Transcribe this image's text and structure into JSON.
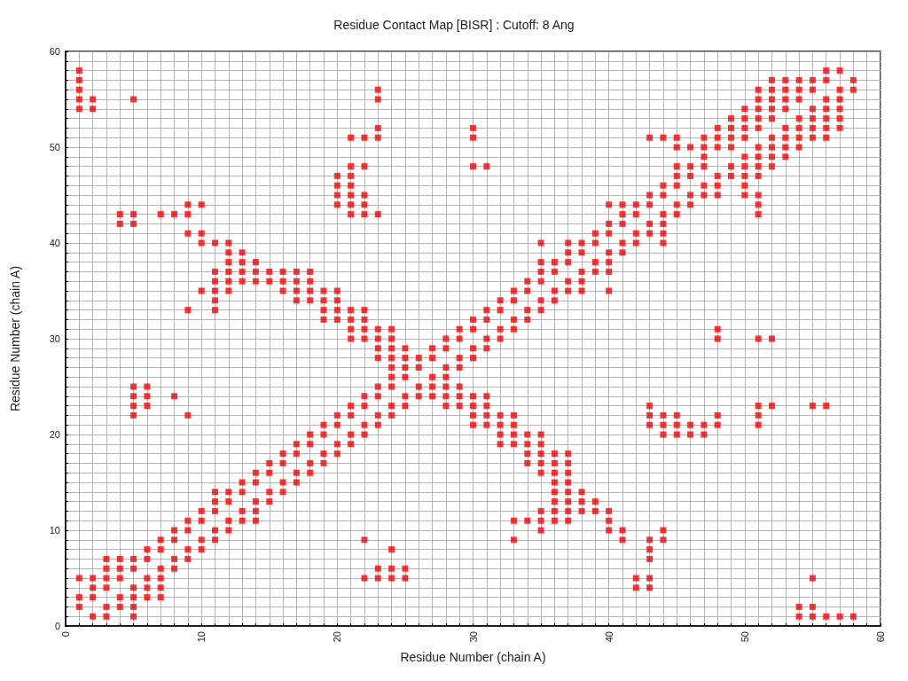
{
  "chart_data": {
    "type": "scatter",
    "title": "Residue Contact Map [BISR] : Cutoff: 8 Ang",
    "xlabel": "Residue Number (chain A)",
    "ylabel": "Residue Number (chain A)",
    "xlim": [
      0,
      60
    ],
    "ylim": [
      0,
      60
    ],
    "xticks": [
      0,
      {
        "value": 1,
        "label": null
      },
      {
        "value": 2,
        "label": null
      },
      {
        "value": 3,
        "label": null
      },
      {
        "value": 4,
        "label": null
      },
      {
        "value": 5,
        "label": null
      },
      {
        "value": 6,
        "label": null
      },
      {
        "value": 7,
        "label": null
      },
      {
        "value": 8,
        "label": null
      },
      {
        "value": 9,
        "label": null
      },
      10,
      {
        "value": 11,
        "label": null
      },
      {
        "value": 12,
        "label": null
      },
      {
        "value": 13,
        "label": null
      },
      {
        "value": 14,
        "label": null
      },
      {
        "value": 15,
        "label": null
      },
      {
        "value": 16,
        "label": null
      },
      {
        "value": 17,
        "label": null
      },
      {
        "value": 18,
        "label": null
      },
      {
        "value": 19,
        "label": null
      },
      20,
      {
        "value": 21,
        "label": null
      },
      {
        "value": 22,
        "label": null
      },
      {
        "value": 23,
        "label": null
      },
      {
        "value": 24,
        "label": null
      },
      {
        "value": 25,
        "label": null
      },
      {
        "value": 26,
        "label": null
      },
      {
        "value": 27,
        "label": null
      },
      {
        "value": 28,
        "label": null
      },
      {
        "value": 29,
        "label": null
      },
      30,
      {
        "value": 31,
        "label": null
      },
      {
        "value": 32,
        "label": null
      },
      {
        "value": 33,
        "label": null
      },
      {
        "value": 34,
        "label": null
      },
      {
        "value": 35,
        "label": null
      },
      {
        "value": 36,
        "label": null
      },
      {
        "value": 37,
        "label": null
      },
      {
        "value": 38,
        "label": null
      },
      {
        "value": 39,
        "label": null
      },
      40,
      {
        "value": 41,
        "label": null
      },
      {
        "value": 42,
        "label": null
      },
      {
        "value": 43,
        "label": null
      },
      {
        "value": 44,
        "label": null
      },
      {
        "value": 45,
        "label": null
      },
      {
        "value": 46,
        "label": null
      },
      {
        "value": 47,
        "label": null
      },
      {
        "value": 48,
        "label": null
      },
      {
        "value": 49,
        "label": null
      },
      50,
      {
        "value": 51,
        "label": null
      },
      {
        "value": 52,
        "label": null
      },
      {
        "value": 53,
        "label": null
      },
      {
        "value": 54,
        "label": null
      },
      {
        "value": 55,
        "label": null
      },
      {
        "value": 56,
        "label": null
      },
      {
        "value": 57,
        "label": null
      },
      {
        "value": 58,
        "label": null
      },
      {
        "value": 59,
        "label": null
      },
      60
    ],
    "yticks": [
      0,
      {
        "value": 1,
        "label": null
      },
      {
        "value": 2,
        "label": null
      },
      {
        "value": 3,
        "label": null
      },
      {
        "value": 4,
        "label": null
      },
      {
        "value": 5,
        "label": null
      },
      {
        "value": 6,
        "label": null
      },
      {
        "value": 7,
        "label": null
      },
      {
        "value": 8,
        "label": null
      },
      {
        "value": 9,
        "label": null
      },
      10,
      {
        "value": 11,
        "label": null
      },
      {
        "value": 12,
        "label": null
      },
      {
        "value": 13,
        "label": null
      },
      {
        "value": 14,
        "label": null
      },
      {
        "value": 15,
        "label": null
      },
      {
        "value": 16,
        "label": null
      },
      {
        "value": 17,
        "label": null
      },
      {
        "value": 18,
        "label": null
      },
      {
        "value": 19,
        "label": null
      },
      20,
      {
        "value": 21,
        "label": null
      },
      {
        "value": 22,
        "label": null
      },
      {
        "value": 23,
        "label": null
      },
      {
        "value": 24,
        "label": null
      },
      {
        "value": 25,
        "label": null
      },
      {
        "value": 26,
        "label": null
      },
      {
        "value": 27,
        "label": null
      },
      {
        "value": 28,
        "label": null
      },
      {
        "value": 29,
        "label": null
      },
      30,
      {
        "value": 31,
        "label": null
      },
      {
        "value": 32,
        "label": null
      },
      {
        "value": 33,
        "label": null
      },
      {
        "value": 34,
        "label": null
      },
      {
        "value": 35,
        "label": null
      },
      {
        "value": 36,
        "label": null
      },
      {
        "value": 37,
        "label": null
      },
      {
        "value": 38,
        "label": null
      },
      {
        "value": 39,
        "label": null
      },
      40,
      {
        "value": 41,
        "label": null
      },
      {
        "value": 42,
        "label": null
      },
      {
        "value": 43,
        "label": null
      },
      {
        "value": 44,
        "label": null
      },
      {
        "value": 45,
        "label": null
      },
      {
        "value": 46,
        "label": null
      },
      {
        "value": 47,
        "label": null
      },
      {
        "value": 48,
        "label": null
      },
      {
        "value": 49,
        "label": null
      },
      50,
      {
        "value": 51,
        "label": null
      },
      {
        "value": 52,
        "label": null
      },
      {
        "value": 53,
        "label": null
      },
      {
        "value": 54,
        "label": null
      },
      {
        "value": 55,
        "label": null
      },
      {
        "value": 56,
        "label": null
      },
      {
        "value": 57,
        "label": null
      },
      {
        "value": 58,
        "label": null
      },
      {
        "value": 59,
        "label": null
      },
      60
    ],
    "grid": true,
    "marker": "square",
    "series": [
      {
        "color": "#ff0000",
        "x": [
          1,
          1,
          1,
          1,
          1,
          1,
          1,
          1,
          2,
          2,
          2,
          2,
          2,
          2,
          3,
          3,
          3,
          3,
          3,
          3,
          4,
          4,
          4,
          4,
          4,
          4,
          4,
          5,
          5,
          5,
          5,
          5,
          5,
          5,
          5,
          5,
          5,
          5,
          5,
          5,
          6,
          6,
          6,
          6,
          6,
          6,
          6,
          6,
          7,
          7,
          7,
          7,
          7,
          7,
          7,
          8,
          8,
          8,
          8,
          8,
          8,
          9,
          9,
          9,
          9,
          9,
          9,
          9,
          9,
          9,
          10,
          10,
          10,
          10,
          10,
          10,
          10,
          10,
          11,
          11,
          11,
          11,
          11,
          11,
          11,
          11,
          11,
          11,
          11,
          12,
          12,
          12,
          12,
          12,
          12,
          12,
          12,
          12,
          12,
          13,
          13,
          13,
          13,
          13,
          13,
          13,
          13,
          14,
          14,
          14,
          14,
          14,
          14,
          14,
          14,
          15,
          15,
          15,
          15,
          15,
          15,
          16,
          16,
          16,
          16,
          16,
          16,
          16,
          17,
          17,
          17,
          17,
          17,
          17,
          17,
          17,
          18,
          18,
          18,
          18,
          18,
          18,
          18,
          18,
          19,
          19,
          19,
          19,
          19,
          19,
          19,
          19,
          20,
          20,
          20,
          20,
          20,
          20,
          20,
          20,
          20,
          20,
          20,
          20,
          21,
          21,
          21,
          21,
          21,
          21,
          21,
          21,
          21,
          21,
          21,
          21,
          21,
          21,
          21,
          22,
          22,
          22,
          22,
          22,
          22,
          22,
          22,
          22,
          22,
          22,
          22,
          22,
          22,
          22,
          23,
          23,
          23,
          23,
          23,
          23,
          23,
          23,
          23,
          23,
          23,
          23,
          23,
          23,
          23,
          24,
          24,
          24,
          24,
          24,
          24,
          24,
          24,
          24,
          24,
          24,
          24,
          25,
          25,
          25,
          25,
          25,
          25,
          25,
          25,
          26,
          26,
          26,
          26,
          27,
          27,
          27,
          27,
          27,
          28,
          28,
          28,
          28,
          28,
          28,
          28,
          29,
          29,
          29,
          29,
          29,
          29,
          29,
          30,
          30,
          30,
          30,
          30,
          30,
          30,
          30,
          30,
          30,
          30,
          31,
          31,
          31,
          31,
          31,
          31,
          31,
          31,
          31,
          32,
          32,
          32,
          32,
          32,
          32,
          32,
          32,
          33,
          33,
          33,
          33,
          33,
          33,
          33,
          33,
          33,
          33,
          34,
          34,
          34,
          34,
          34,
          34,
          34,
          34,
          34,
          35,
          35,
          35,
          35,
          35,
          35,
          35,
          35,
          35,
          35,
          35,
          35,
          35,
          35,
          36,
          36,
          36,
          36,
          36,
          36,
          36,
          36,
          36,
          36,
          36,
          36,
          37,
          37,
          37,
          37,
          37,
          37,
          37,
          37,
          37,
          37,
          37,
          37,
          37,
          38,
          38,
          38,
          38,
          38,
          38,
          38,
          38,
          39,
          39,
          39,
          39,
          39,
          39,
          40,
          40,
          40,
          40,
          40,
          40,
          40,
          40,
          40,
          40,
          41,
          41,
          41,
          41,
          41,
          41,
          41,
          42,
          42,
          42,
          42,
          42,
          42,
          43,
          43,
          43,
          43,
          43,
          43,
          43,
          43,
          43,
          43,
          43,
          43,
          43,
          44,
          44,
          44,
          44,
          44,
          44,
          44,
          44,
          44,
          44,
          44,
          44,
          45,
          45,
          45,
          45,
          45,
          45,
          45,
          45,
          45,
          45,
          46,
          46,
          46,
          46,
          46,
          46,
          46,
          47,
          47,
          47,
          47,
          47,
          47,
          47,
          47,
          48,
          48,
          48,
          48,
          48,
          48,
          48,
          48,
          48,
          48,
          49,
          49,
          49,
          49,
          49,
          49,
          50,
          50,
          50,
          50,
          50,
          50,
          50,
          50,
          50,
          51,
          51,
          51,
          51,
          51,
          51,
          51,
          51,
          51,
          51,
          51,
          51,
          51,
          51,
          51,
          51,
          52,
          52,
          52,
          52,
          52,
          52,
          52,
          52,
          52,
          52,
          52,
          53,
          53,
          53,
          53,
          53,
          53,
          53,
          53,
          54,
          54,
          54,
          54,
          54,
          54,
          54,
          54,
          54,
          55,
          55,
          55,
          55,
          55,
          55,
          55,
          55,
          55,
          55,
          56,
          56,
          56,
          56,
          56,
          56,
          56,
          56,
          56,
          57,
          57,
          57,
          57,
          57,
          57,
          57,
          58,
          58,
          58
        ],
        "values": [
          2,
          3,
          5,
          54,
          55,
          56,
          57,
          58,
          1,
          3,
          4,
          5,
          54,
          55,
          1,
          2,
          4,
          5,
          6,
          7,
          2,
          3,
          5,
          6,
          7,
          42,
          43,
          1,
          2,
          3,
          4,
          6,
          7,
          22,
          23,
          24,
          25,
          42,
          43,
          55,
          3,
          4,
          5,
          7,
          8,
          23,
          24,
          25,
          3,
          4,
          5,
          6,
          8,
          9,
          43,
          6,
          7,
          9,
          10,
          24,
          43,
          7,
          8,
          10,
          11,
          22,
          33,
          41,
          43,
          44,
          8,
          9,
          11,
          12,
          35,
          40,
          41,
          44,
          9,
          10,
          12,
          13,
          14,
          33,
          34,
          35,
          36,
          37,
          40,
          10,
          11,
          13,
          14,
          35,
          36,
          37,
          38,
          39,
          40,
          11,
          12,
          14,
          15,
          36,
          37,
          38,
          39,
          11,
          12,
          13,
          15,
          16,
          36,
          37,
          38,
          13,
          14,
          16,
          17,
          36,
          37,
          14,
          15,
          17,
          18,
          35,
          36,
          37,
          15,
          16,
          18,
          19,
          34,
          35,
          36,
          37,
          16,
          17,
          19,
          20,
          34,
          35,
          36,
          37,
          17,
          18,
          20,
          21,
          32,
          33,
          34,
          35,
          18,
          19,
          21,
          22,
          32,
          33,
          34,
          35,
          44,
          45,
          46,
          47,
          19,
          20,
          22,
          23,
          30,
          31,
          32,
          33,
          43,
          44,
          45,
          46,
          47,
          48,
          51,
          5,
          9,
          20,
          21,
          23,
          24,
          30,
          31,
          32,
          33,
          43,
          44,
          45,
          48,
          51,
          5,
          6,
          21,
          22,
          24,
          25,
          28,
          29,
          30,
          31,
          43,
          51,
          52,
          55,
          56,
          5,
          6,
          8,
          22,
          23,
          25,
          26,
          27,
          28,
          29,
          30,
          31,
          5,
          6,
          23,
          24,
          26,
          27,
          28,
          29,
          24,
          25,
          27,
          28,
          24,
          25,
          26,
          28,
          29,
          23,
          24,
          25,
          26,
          27,
          29,
          30,
          23,
          24,
          25,
          27,
          28,
          30,
          31,
          21,
          22,
          23,
          24,
          28,
          29,
          31,
          32,
          48,
          51,
          52,
          21,
          22,
          23,
          24,
          29,
          30,
          32,
          33,
          48,
          19,
          20,
          21,
          22,
          30,
          31,
          33,
          34,
          9,
          11,
          19,
          20,
          21,
          22,
          31,
          32,
          34,
          35,
          11,
          17,
          18,
          19,
          20,
          32,
          33,
          35,
          36,
          10,
          11,
          12,
          16,
          17,
          18,
          19,
          20,
          33,
          34,
          36,
          37,
          38,
          40,
          11,
          12,
          13,
          14,
          15,
          16,
          17,
          18,
          34,
          35,
          37,
          38,
          11,
          12,
          13,
          14,
          15,
          16,
          17,
          18,
          35,
          36,
          38,
          39,
          40,
          12,
          13,
          14,
          35,
          36,
          37,
          39,
          40,
          12,
          13,
          37,
          38,
          40,
          41,
          10,
          11,
          12,
          35,
          37,
          38,
          39,
          41,
          42,
          44,
          9,
          10,
          39,
          40,
          42,
          43,
          44,
          4,
          5,
          40,
          41,
          43,
          44,
          4,
          5,
          7,
          8,
          9,
          21,
          22,
          23,
          41,
          42,
          44,
          45,
          51,
          9,
          10,
          20,
          21,
          22,
          40,
          41,
          42,
          43,
          45,
          46,
          51,
          20,
          21,
          22,
          43,
          44,
          46,
          47,
          48,
          50,
          51,
          20,
          21,
          44,
          45,
          47,
          48,
          50,
          20,
          21,
          45,
          46,
          48,
          49,
          50,
          51,
          21,
          22,
          30,
          31,
          45,
          46,
          47,
          50,
          51,
          52,
          47,
          48,
          50,
          51,
          52,
          53,
          45,
          46,
          47,
          48,
          49,
          51,
          52,
          53,
          54,
          21,
          22,
          23,
          30,
          43,
          44,
          45,
          47,
          48,
          49,
          50,
          52,
          53,
          54,
          55,
          56,
          23,
          30,
          48,
          49,
          50,
          51,
          53,
          54,
          55,
          56,
          57,
          49,
          50,
          51,
          52,
          54,
          55,
          56,
          57,
          1,
          2,
          50,
          51,
          52,
          53,
          55,
          56,
          57,
          1,
          2,
          5,
          23,
          51,
          52,
          53,
          54,
          56,
          57,
          1,
          23,
          51,
          52,
          53,
          54,
          55,
          57,
          58,
          1,
          52,
          53,
          54,
          55,
          56,
          58,
          1,
          56,
          57
        ]
      }
    ]
  }
}
